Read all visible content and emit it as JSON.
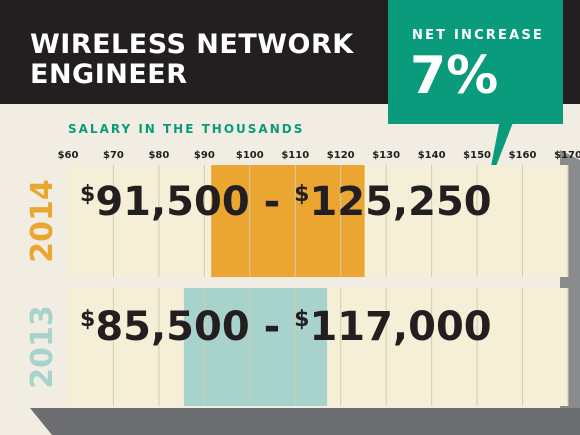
{
  "header": {
    "title_line1": "WIRELESS NETWORK",
    "title_line2": "ENGINEER",
    "callout_label": "NET INCREASE",
    "callout_value": "7%"
  },
  "colors": {
    "header_bg": "#231f20",
    "callout": "#0a9b7c",
    "row_bg": "#f4efd6",
    "bar_2014": "#eba632",
    "bar_2013": "#a8d3cc",
    "year_2014": "#eba632",
    "year_2013": "#a8d3cc",
    "shadow": "#6d6e71"
  },
  "chart_data": {
    "type": "bar",
    "title": "",
    "xlabel": "SALARY IN THE THOUSANDS",
    "ticks": [
      "$60",
      "$70",
      "$80",
      "$90",
      "$100",
      "$110",
      "$120",
      "$130",
      "$140",
      "$150",
      "$160",
      "$170"
    ],
    "xlim": [
      60,
      170
    ],
    "series": [
      {
        "name": "2014",
        "low": 91.5,
        "high": 125.25,
        "label_low": "91,500",
        "label_high": "125,250",
        "sep": "-",
        "dollar": "$"
      },
      {
        "name": "2013",
        "low": 85.5,
        "high": 117.0,
        "label_low": "85,500",
        "label_high": "117,000",
        "sep": "-",
        "dollar": "$"
      }
    ]
  }
}
